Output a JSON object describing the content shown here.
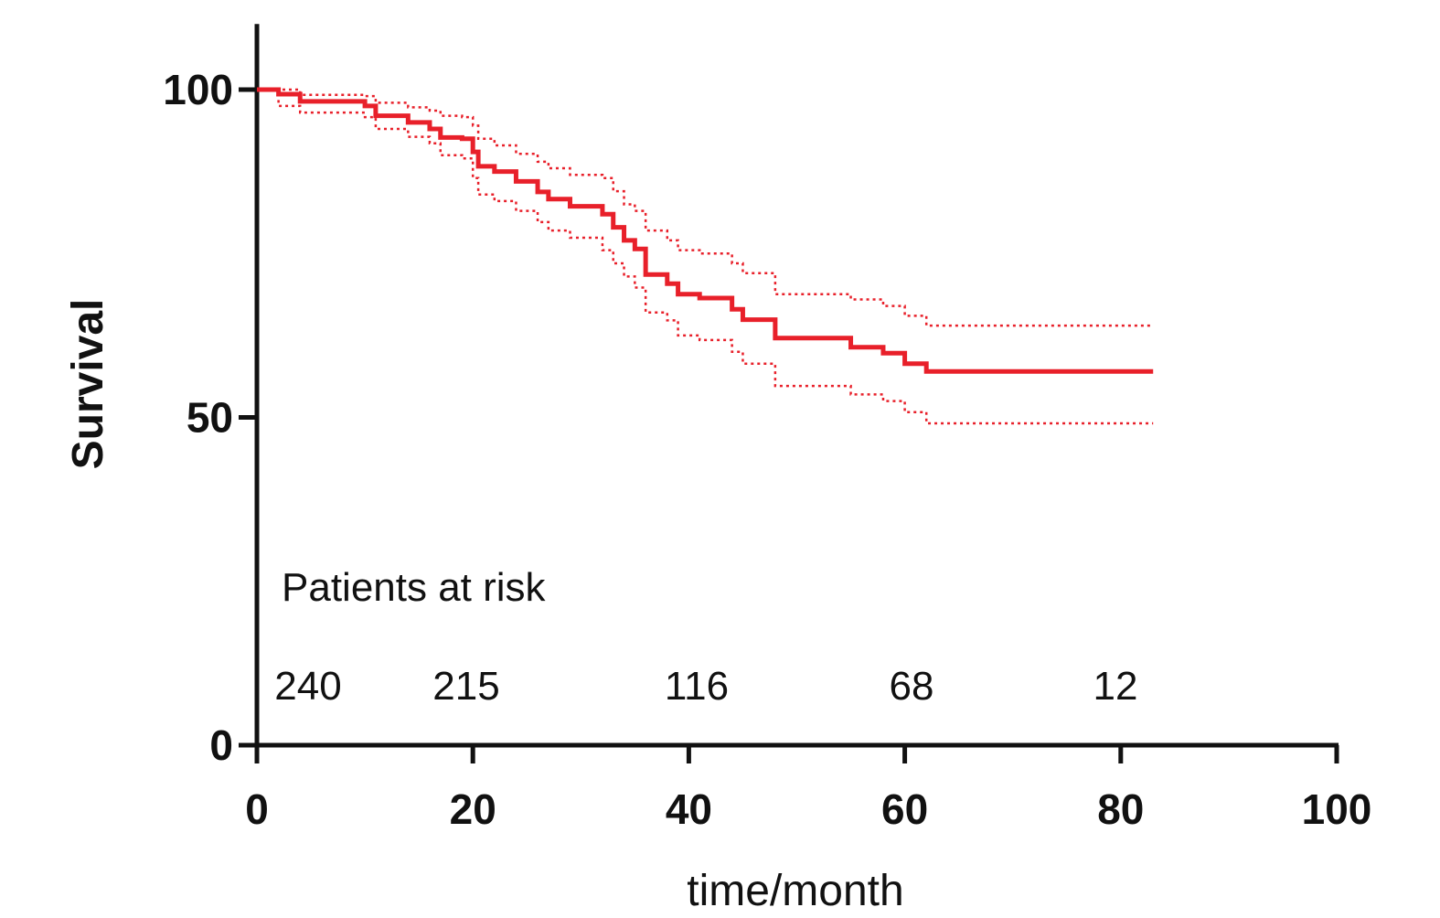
{
  "chart_data": {
    "type": "step",
    "xlabel": "time/month",
    "ylabel": "Survival",
    "xlim": [
      0,
      100
    ],
    "ylim": [
      0,
      110
    ],
    "xticks": [
      0,
      20,
      40,
      60,
      80,
      100
    ],
    "yticks": [
      0,
      50,
      100
    ],
    "x": [
      0,
      2,
      4,
      10,
      11,
      14,
      16,
      17,
      19,
      20,
      20.5,
      22,
      24,
      26,
      27,
      29,
      32,
      33,
      34,
      35,
      36,
      38,
      39,
      41,
      44,
      45,
      48,
      55,
      58,
      60,
      62,
      83
    ],
    "series": [
      {
        "color": "#e8202a",
        "style": "solid",
        "values": [
          100,
          99.3,
          98.2,
          97.5,
          96,
          95,
          94,
          92.7,
          92.5,
          90.5,
          88.3,
          87.5,
          86,
          84.4,
          83.3,
          82.2,
          81,
          79,
          77,
          75.7,
          71.8,
          70.4,
          68.8,
          68.2,
          66.5,
          64.9,
          62.1,
          60.7,
          59.8,
          58.2,
          57,
          57
        ]
      },
      {
        "color": "#e8202a",
        "style": "dotted",
        "values": [
          100,
          100,
          99.2,
          99,
          98,
          97.3,
          96.8,
          96,
          95.8,
          94.5,
          92.5,
          91.5,
          90.2,
          89,
          88,
          87,
          86.5,
          84.5,
          82.5,
          81.5,
          78.5,
          77,
          75.5,
          75,
          73.5,
          72,
          68.8,
          68,
          67,
          65.5,
          64,
          64
        ]
      },
      {
        "color": "#e8202a",
        "style": "dotted",
        "values": [
          100,
          97.5,
          96.5,
          95.8,
          94,
          92.8,
          91.8,
          90,
          89.5,
          86.5,
          84,
          83,
          81.5,
          79.8,
          78.5,
          77.4,
          75.5,
          73.5,
          71.5,
          69.8,
          66,
          64.8,
          62.5,
          61.8,
          60,
          58.2,
          54.8,
          53.5,
          52.5,
          50.8,
          49.1,
          49.1
        ]
      }
    ],
    "risk_table": {
      "label": "Patients at risk",
      "counts": [
        240,
        215,
        116,
        68,
        12
      ]
    }
  }
}
